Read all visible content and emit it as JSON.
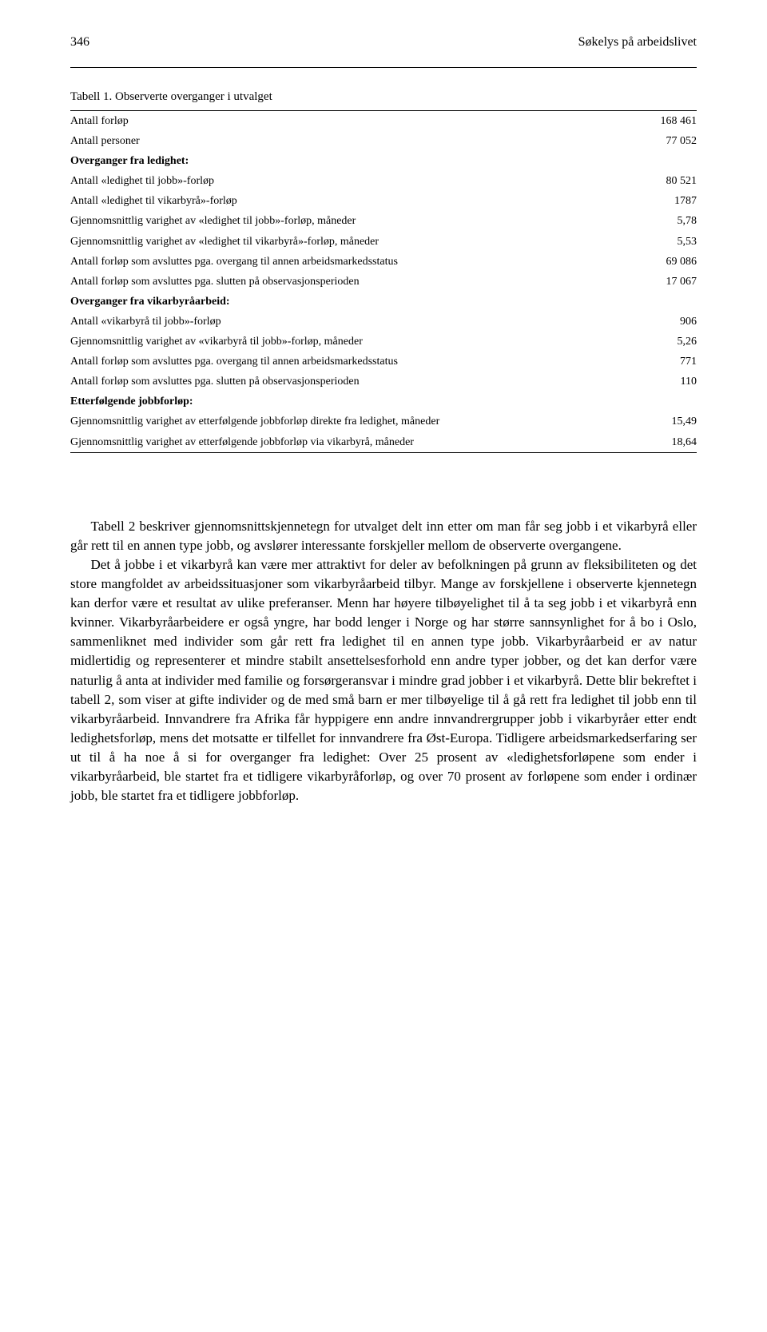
{
  "header": {
    "page_number": "346",
    "running_title": "Søkelys på arbeidslivet"
  },
  "table": {
    "caption": "Tabell 1. Observerte overganger i utvalget",
    "rows": [
      {
        "label": "Antall forløp",
        "value": "168 461",
        "bold": false
      },
      {
        "label": "Antall personer",
        "value": "77 052",
        "bold": false
      },
      {
        "label": "Overganger fra ledighet:",
        "value": "",
        "bold": true
      },
      {
        "label": "Antall «ledighet til jobb»-forløp",
        "value": "80 521",
        "bold": false
      },
      {
        "label": "Antall «ledighet til vikarbyrå»-forløp",
        "value": "1787",
        "bold": false
      },
      {
        "label": "Gjennomsnittlig varighet av «ledighet til jobb»-forløp, måneder",
        "value": "5,78",
        "bold": false
      },
      {
        "label": "Gjennomsnittlig varighet av «ledighet til vikarbyrå»-forløp, måneder",
        "value": "5,53",
        "bold": false
      },
      {
        "label": "Antall forløp som avsluttes pga. overgang til annen arbeidsmarkedsstatus",
        "value": "69 086",
        "bold": false
      },
      {
        "label": "Antall forløp som avsluttes pga. slutten på observasjonsperioden",
        "value": "17 067",
        "bold": false
      },
      {
        "label": "Overganger fra vikarbyråarbeid:",
        "value": "",
        "bold": true
      },
      {
        "label": "Antall «vikarbyrå til jobb»-forløp",
        "value": "906",
        "bold": false
      },
      {
        "label": "Gjennomsnittlig varighet av «vikarbyrå til jobb»-forløp, måneder",
        "value": "5,26",
        "bold": false
      },
      {
        "label": "Antall forløp som avsluttes pga. overgang til annen arbeidsmarkedsstatus",
        "value": "771",
        "bold": false
      },
      {
        "label": "Antall forløp som avsluttes pga. slutten på observasjonsperioden",
        "value": "110",
        "bold": false
      },
      {
        "label": "Etterfølgende jobbforløp:",
        "value": "",
        "bold": true
      },
      {
        "label": "Gjennomsnittlig varighet av etterfølgende jobbforløp direkte fra ledighet, måneder",
        "value": "15,49",
        "bold": false
      },
      {
        "label": "Gjennomsnittlig varighet av etterfølgende jobbforløp via vikarbyrå, måneder",
        "value": "18,64",
        "bold": false
      }
    ]
  },
  "body": {
    "p1": "Tabell 2 beskriver gjennomsnittskjennetegn for utvalget delt inn etter om man får seg jobb i et vikarbyrå eller går rett til en annen type jobb, og avslører interessante forskjeller mellom de observerte overgangene.",
    "p2": "Det å jobbe i et vikarbyrå kan være mer attraktivt for deler av befolkningen på grunn av fleksibiliteten og det store mangfoldet av arbeidssituasjoner som vikarbyråarbeid tilbyr. Mange av forskjellene i observerte kjennetegn kan derfor være et resultat av ulike preferanser. Menn har høyere tilbøyelighet til å ta seg jobb i et vikarbyrå enn kvinner. Vikarbyråarbeidere er også yngre, har bodd lenger i Norge og har større sannsynlighet for å bo i Oslo, sammenliknet med individer som går rett fra ledighet til en annen type jobb. Vikarbyråarbeid er av natur midlertidig og representerer et mindre stabilt ansettelsesforhold enn andre typer jobber, og det kan derfor være naturlig å anta at individer med familie og forsørgeransvar i mindre grad jobber i et vikarbyrå. Dette blir bekreftet i tabell 2, som viser at gifte individer og de med små barn er mer tilbøyelige til å gå rett fra ledighet til jobb enn til vikarbyråarbeid. Innvandrere fra Afrika får hyppigere enn andre innvandrergrupper jobb i vikarbyråer etter endt ledighetsforløp, mens det motsatte er tilfellet for innvandrere fra Øst-Europa. Tidligere arbeidsmarkedserfaring ser ut til å ha noe å si for overganger fra ledighet: Over 25 prosent av «ledighetsforløpene som ender i vikarbyråarbeid, ble startet fra et tidligere vikarbyråforløp, og over 70 prosent av forløpene som ender i ordinær jobb, ble startet fra et tidligere jobbforløp."
  }
}
